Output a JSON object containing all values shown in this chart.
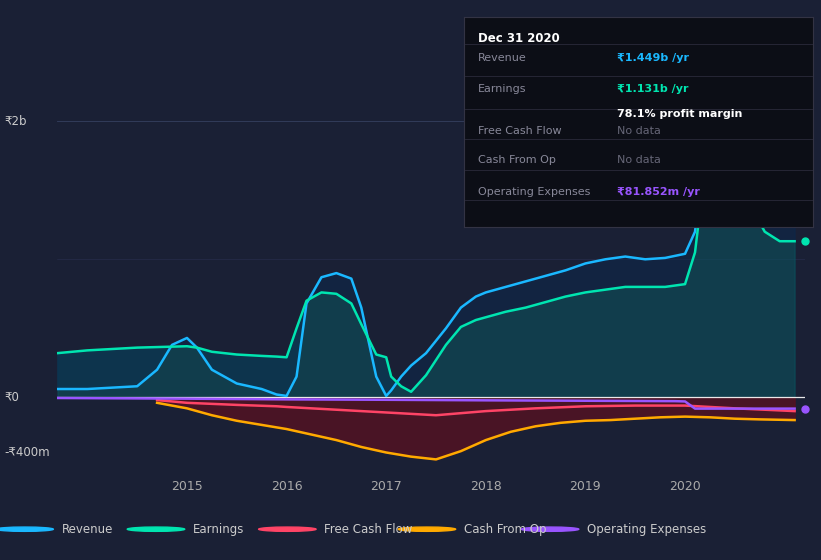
{
  "bg_color": "#1a2035",
  "plot_bg_color": "#1a2035",
  "grid_color": "#2a3050",
  "title_box": {
    "date": "Dec 31 2020",
    "revenue_label": "Revenue",
    "revenue_val": "₹1.449b /yr",
    "earnings_label": "Earnings",
    "earnings_val": "₹1.131b /yr",
    "margin_val": "78.1% profit margin",
    "fcf_label": "Free Cash Flow",
    "fcf_val": "No data",
    "cop_label": "Cash From Op",
    "cop_val": "No data",
    "opex_label": "Operating Expenses",
    "opex_val": "₹81.852m /yr"
  },
  "ylim": [
    -550000000,
    2250000000
  ],
  "xlim_start": 2013.7,
  "xlim_end": 2021.2,
  "ytick_labels": [
    "₹2b",
    "₹0",
    "-₹400m"
  ],
  "ytick_vals": [
    2000000000,
    0,
    -400000000
  ],
  "xticks": [
    2015,
    2016,
    2017,
    2018,
    2019,
    2020
  ],
  "colors": {
    "revenue": "#1ab8ff",
    "earnings": "#00e5b0",
    "free_cash_flow": "#ff4466",
    "cash_from_op": "#ffaa00",
    "operating_expenses": "#9955ff"
  },
  "legend_labels": [
    "Revenue",
    "Earnings",
    "Free Cash Flow",
    "Cash From Op",
    "Operating Expenses"
  ],
  "revenue_x": [
    2013.7,
    2014.0,
    2014.5,
    2014.7,
    2014.85,
    2015.0,
    2015.1,
    2015.25,
    2015.5,
    2015.75,
    2015.9,
    2016.0,
    2016.1,
    2016.2,
    2016.35,
    2016.5,
    2016.65,
    2016.75,
    2016.9,
    2017.0,
    2017.05,
    2017.15,
    2017.25,
    2017.4,
    2017.6,
    2017.75,
    2017.9,
    2018.0,
    2018.2,
    2018.4,
    2018.6,
    2018.8,
    2019.0,
    2019.2,
    2019.4,
    2019.6,
    2019.8,
    2020.0,
    2020.1,
    2020.2,
    2020.35,
    2020.5,
    2020.65,
    2020.8,
    2020.95,
    2021.0,
    2021.1
  ],
  "revenue_y": [
    60000000,
    60000000,
    80000000,
    200000000,
    380000000,
    430000000,
    360000000,
    200000000,
    100000000,
    60000000,
    20000000,
    10000000,
    150000000,
    680000000,
    870000000,
    900000000,
    860000000,
    650000000,
    150000000,
    10000000,
    50000000,
    150000000,
    230000000,
    320000000,
    500000000,
    650000000,
    730000000,
    760000000,
    800000000,
    840000000,
    880000000,
    920000000,
    970000000,
    1000000000,
    1020000000,
    1000000000,
    1010000000,
    1040000000,
    1200000000,
    1800000000,
    1950000000,
    1930000000,
    1750000000,
    1580000000,
    1449000000,
    1449000000,
    1449000000
  ],
  "earnings_x": [
    2013.7,
    2014.0,
    2014.5,
    2015.0,
    2015.1,
    2015.25,
    2015.5,
    2015.75,
    2015.9,
    2016.0,
    2016.1,
    2016.2,
    2016.35,
    2016.5,
    2016.65,
    2016.75,
    2016.9,
    2017.0,
    2017.05,
    2017.15,
    2017.25,
    2017.4,
    2017.6,
    2017.75,
    2017.9,
    2018.0,
    2018.2,
    2018.4,
    2018.6,
    2018.8,
    2019.0,
    2019.2,
    2019.4,
    2019.6,
    2019.8,
    2020.0,
    2020.1,
    2020.2,
    2020.35,
    2020.5,
    2020.65,
    2020.8,
    2020.95,
    2021.0,
    2021.1
  ],
  "earnings_y": [
    320000000,
    340000000,
    360000000,
    370000000,
    360000000,
    330000000,
    310000000,
    300000000,
    295000000,
    290000000,
    500000000,
    700000000,
    760000000,
    750000000,
    680000000,
    530000000,
    310000000,
    290000000,
    150000000,
    80000000,
    40000000,
    160000000,
    380000000,
    510000000,
    560000000,
    580000000,
    620000000,
    650000000,
    690000000,
    730000000,
    760000000,
    780000000,
    800000000,
    800000000,
    800000000,
    820000000,
    1050000000,
    1650000000,
    1700000000,
    1650000000,
    1400000000,
    1200000000,
    1131000000,
    1131000000,
    1131000000
  ],
  "fcf_x": [
    2014.7,
    2015.0,
    2015.5,
    2015.9,
    2016.0,
    2016.5,
    2017.0,
    2017.5,
    2018.0,
    2018.5,
    2019.0,
    2019.5,
    2020.0,
    2020.5,
    2021.1
  ],
  "fcf_y": [
    -20000000,
    -40000000,
    -55000000,
    -65000000,
    -70000000,
    -90000000,
    -110000000,
    -130000000,
    -100000000,
    -80000000,
    -65000000,
    -60000000,
    -60000000,
    -80000000,
    -100000000
  ],
  "cop_x": [
    2014.7,
    2015.0,
    2015.25,
    2015.5,
    2015.75,
    2016.0,
    2016.25,
    2016.5,
    2016.75,
    2017.0,
    2017.25,
    2017.5,
    2017.75,
    2018.0,
    2018.25,
    2018.5,
    2018.75,
    2019.0,
    2019.25,
    2019.5,
    2019.75,
    2020.0,
    2020.25,
    2020.5,
    2020.75,
    2021.1
  ],
  "cop_y": [
    -40000000,
    -80000000,
    -130000000,
    -170000000,
    -200000000,
    -230000000,
    -270000000,
    -310000000,
    -360000000,
    -400000000,
    -430000000,
    -450000000,
    -390000000,
    -310000000,
    -250000000,
    -210000000,
    -185000000,
    -170000000,
    -165000000,
    -155000000,
    -145000000,
    -140000000,
    -145000000,
    -155000000,
    -160000000,
    -165000000
  ],
  "opex_x": [
    2013.7,
    2014.5,
    2015.0,
    2016.0,
    2017.0,
    2018.0,
    2019.0,
    2019.9,
    2020.0,
    2020.1,
    2021.1
  ],
  "opex_y": [
    -5000000,
    -8000000,
    -10000000,
    -15000000,
    -18000000,
    -22000000,
    -25000000,
    -28000000,
    -30000000,
    -82000000,
    -82000000
  ]
}
